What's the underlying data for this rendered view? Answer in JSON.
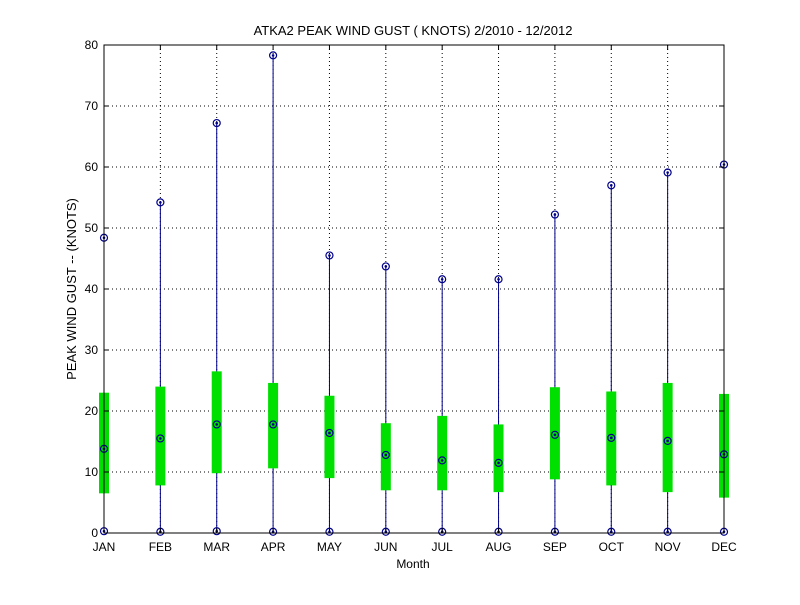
{
  "chart_data": {
    "type": "boxplot",
    "title": "ATKA2  PEAK WIND GUST ( KNOTS) 2/2010 - 12/2012",
    "xlabel": "Month",
    "ylabel": "PEAK WIND GUST -- (KNOTS)",
    "ylim": [
      0,
      80
    ],
    "yticks": [
      "0",
      "10",
      "20",
      "30",
      "40",
      "50",
      "60",
      "70",
      "80"
    ],
    "grid": true,
    "categories": [
      "JAN",
      "FEB",
      "MAR",
      "APR",
      "MAY",
      "JUN",
      "JUL",
      "AUG",
      "SEP",
      "OCT",
      "NOV",
      "DEC"
    ],
    "min": [
      0.3,
      0.2,
      0.3,
      0.2,
      0.2,
      0.2,
      0.2,
      0.2,
      0.2,
      0.2,
      0.2,
      0.2
    ],
    "q1": [
      6.5,
      7.8,
      9.8,
      10.6,
      9.0,
      7.0,
      7.0,
      6.7,
      8.8,
      7.8,
      6.7,
      5.8
    ],
    "median": [
      13.8,
      15.5,
      17.8,
      17.8,
      16.4,
      12.8,
      11.9,
      11.5,
      16.1,
      15.6,
      15.1,
      12.9
    ],
    "q3": [
      23.0,
      24.0,
      26.5,
      24.6,
      22.5,
      18.0,
      19.2,
      17.8,
      23.9,
      23.2,
      24.6,
      22.8
    ],
    "max": [
      48.4,
      54.2,
      67.2,
      78.3,
      45.5,
      43.7,
      41.6,
      41.6,
      52.2,
      57.0,
      59.1,
      60.4
    ],
    "colors": {
      "whisker": "#00008b",
      "box": "#00e000",
      "marker": "#00008b",
      "grid": "#000000"
    }
  }
}
